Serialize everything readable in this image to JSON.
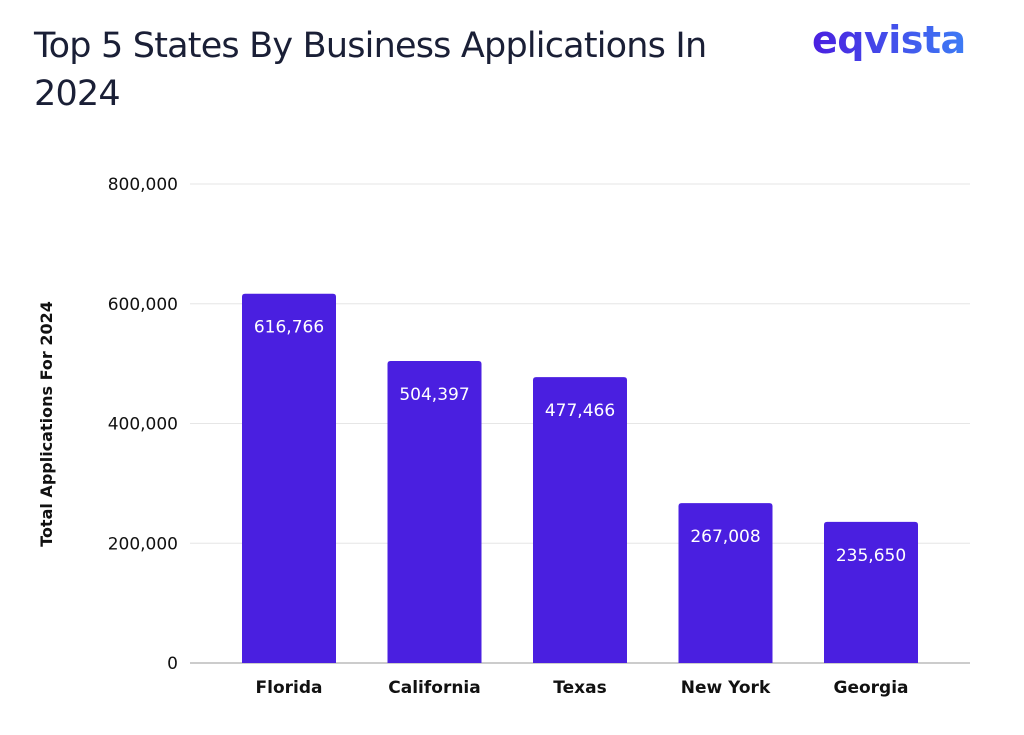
{
  "title": "Top 5 States By Business Applications In 2024",
  "logo": "eqvista",
  "chart_data": {
    "type": "bar",
    "title": "Top 5 States By Business Applications In 2024",
    "xlabel": "",
    "ylabel": "Total Applications For 2024",
    "categories": [
      "Florida",
      "California",
      "Texas",
      "New York",
      "Georgia"
    ],
    "values": [
      616766,
      504397,
      477466,
      267008,
      235650
    ],
    "data_labels": [
      "616,766",
      "504,397",
      "477,466",
      "267,008",
      "235,650"
    ],
    "ylim": [
      0,
      800000
    ],
    "yticks": [
      0,
      200000,
      400000,
      600000,
      800000
    ],
    "ytick_labels": [
      "0",
      "200,000",
      "400,000",
      "600,000",
      "800,000"
    ],
    "grid": true,
    "bar_color": "#4a1fe0"
  }
}
